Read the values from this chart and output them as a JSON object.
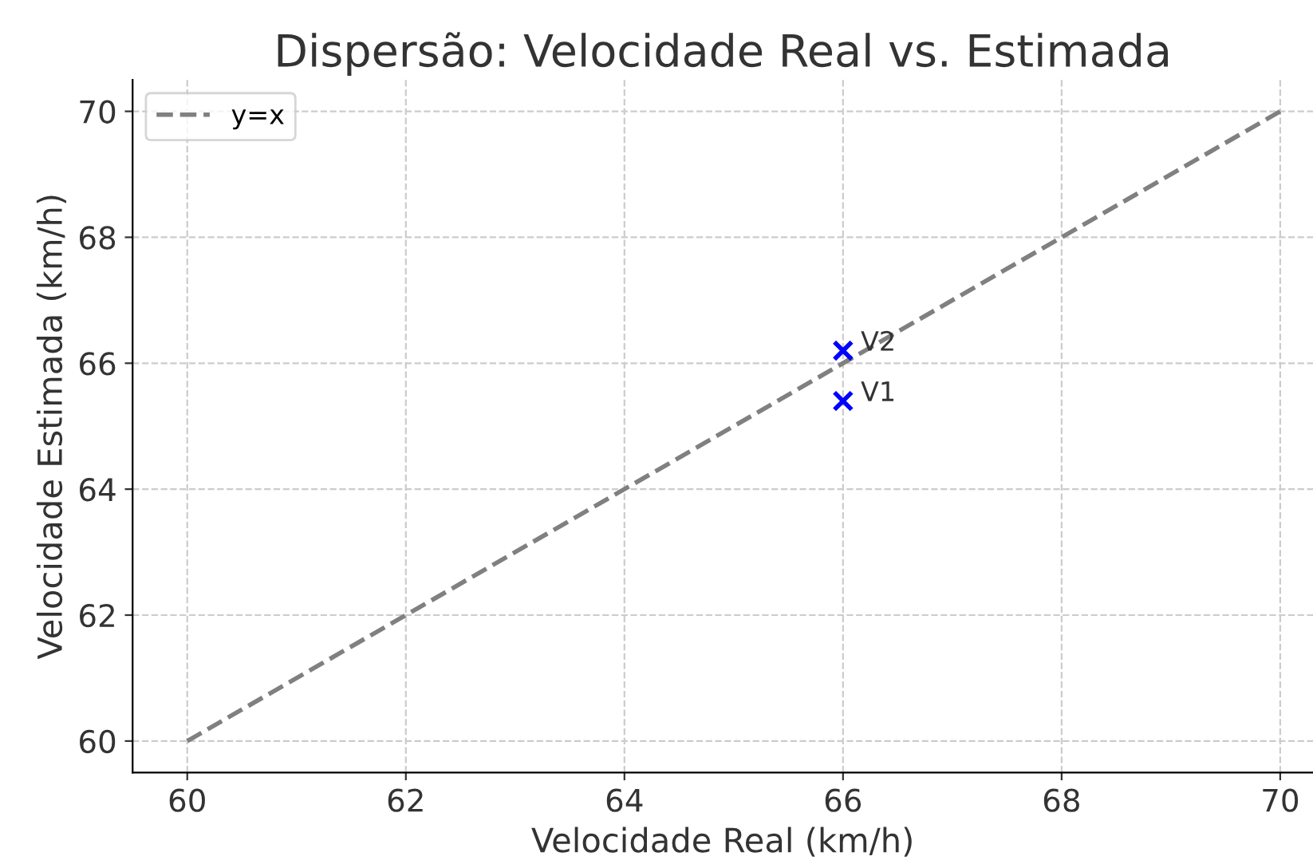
{
  "chart_data": {
    "type": "scatter",
    "title": "Dispersão: Velocidade Real vs. Estimada",
    "xlabel": "Velocidade Real (km/h)",
    "ylabel": "Velocidade Estimada (km/h)",
    "series": [
      {
        "type": "line",
        "name": "y=x",
        "color": "#808080",
        "x": [
          60,
          70
        ],
        "values": [
          60,
          70
        ],
        "line_style": "dashed",
        "marker": "none"
      },
      {
        "color": "#0000ff",
        "x": [
          66,
          66
        ],
        "values": [
          65.4,
          66.2
        ],
        "marker": "cross"
      }
    ],
    "annotations": [
      {
        "text": "V1",
        "x": 66,
        "y": 65.4
      },
      {
        "text": "V2",
        "x": 66,
        "y": 66.2
      }
    ],
    "xlim": [
      59.5,
      70.3
    ],
    "ylim": [
      59.5,
      70.5
    ],
    "xticks": [
      60,
      62,
      64,
      66,
      68,
      70
    ],
    "yticks": [
      60,
      62,
      64,
      66,
      68,
      70
    ],
    "grid": true,
    "legend": "top left"
  }
}
